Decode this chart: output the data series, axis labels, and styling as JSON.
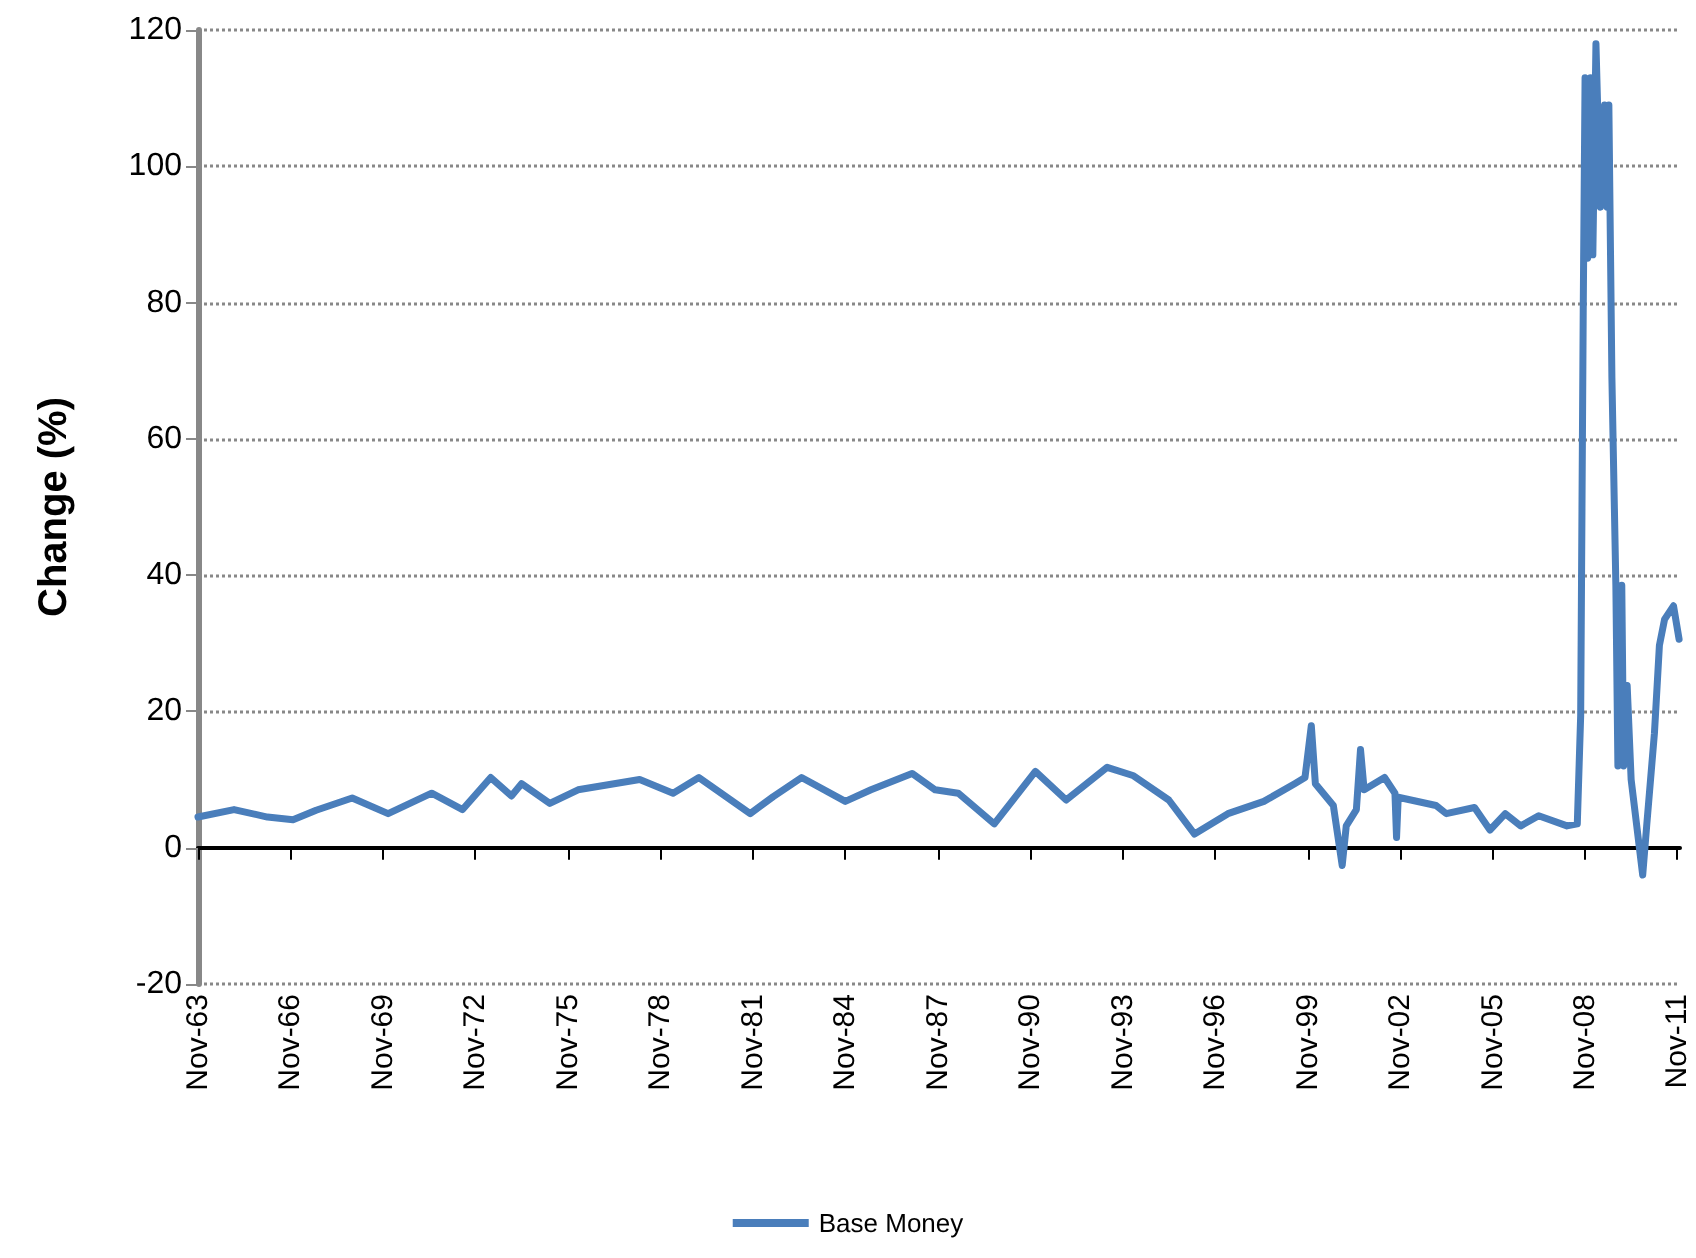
{
  "chart_data": {
    "type": "line",
    "ylabel": "Change (%)",
    "x": [
      "1963-11",
      "1965-01",
      "1966-02",
      "1966-12",
      "1967-09",
      "1968-11",
      "1970-01",
      "1971-06",
      "1972-06",
      "1973-05",
      "1974-01",
      "1974-05",
      "1975-04",
      "1976-03",
      "1978-03",
      "1979-04",
      "1980-02",
      "1981-10",
      "1982-07",
      "1983-06",
      "1984-11",
      "1985-09",
      "1987-01",
      "1987-10",
      "1988-07",
      "1989-09",
      "1991-01",
      "1992-01",
      "1993-05",
      "1994-03",
      "1995-05",
      "1996-03",
      "1997-04",
      "1998-06",
      "1999-06",
      "1999-10",
      "1999-12-15",
      "2000-02",
      "2000-09",
      "2000-12-15",
      "2001-02",
      "2001-06",
      "2001-07-20",
      "2001-09",
      "2002-05",
      "2002-09-01",
      "2002-09-20",
      "2002-10-10",
      "2004-01",
      "2004-05",
      "2005-04",
      "2005-10",
      "2006-04",
      "2006-10",
      "2007-05",
      "2008-04",
      "2008-08-01",
      "2008-09-10",
      "2008-10-10",
      "2008-11-01",
      "2008-12-01",
      "2009-01-05",
      "2009-02-01",
      "2009-03-10",
      "2009-05-01",
      "2009-06-20",
      "2009-07-20",
      "2009-08-10",
      "2009-09-15",
      "2009-11-01",
      "2009-11-25",
      "2010-01-10",
      "2010-02-01",
      "2010-03-15",
      "2010-05-01",
      "2010-09-15",
      "2010-11-01",
      "2011-02-01",
      "2011-04-01",
      "2011-06-01",
      "2011-09-15",
      "2011-11-20"
    ],
    "series": [
      {
        "name": "Base Money",
        "color": "#4a7ebb",
        "values": [
          4.5,
          5.6,
          4.5,
          4.1,
          5.5,
          7.3,
          5,
          8,
          5.6,
          10.3,
          7.6,
          9.4,
          6.5,
          8.5,
          10,
          8,
          10.3,
          5,
          7.5,
          10.3,
          6.8,
          8.5,
          10.9,
          8.5,
          8,
          3.5,
          11.2,
          7,
          11.8,
          10.6,
          7,
          2,
          5,
          6.8,
          9.4,
          10.3,
          17.9,
          9.4,
          6.2,
          -2.6,
          3.2,
          5.6,
          14.4,
          8.5,
          10.3,
          8,
          1.5,
          7.4,
          6.2,
          5,
          5.9,
          2.6,
          5,
          3.2,
          4.7,
          3.2,
          3.5,
          19.4,
          78.5,
          113,
          86.5,
          113,
          87,
          118,
          94,
          109,
          94,
          109,
          69,
          38.5,
          12,
          38.5,
          12,
          23.8,
          10,
          -4,
          3.2,
          16.8,
          29.7,
          33.5,
          35.5,
          30.6
        ]
      }
    ],
    "xlim": [
      "1963-11-01",
      "2011-12-01"
    ],
    "xticks": [
      {
        "value": "1963-11",
        "label": "Nov-63"
      },
      {
        "value": "1966-11",
        "label": "Nov-66"
      },
      {
        "value": "1969-11",
        "label": "Nov-69"
      },
      {
        "value": "1972-11",
        "label": "Nov-72"
      },
      {
        "value": "1975-11",
        "label": "Nov-75"
      },
      {
        "value": "1978-11",
        "label": "Nov-78"
      },
      {
        "value": "1981-11",
        "label": "Nov-81"
      },
      {
        "value": "1984-11",
        "label": "Nov-84"
      },
      {
        "value": "1987-11",
        "label": "Nov-87"
      },
      {
        "value": "1990-11",
        "label": "Nov-90"
      },
      {
        "value": "1993-11",
        "label": "Nov-93"
      },
      {
        "value": "1996-11",
        "label": "Nov-96"
      },
      {
        "value": "1999-11",
        "label": "Nov-99"
      },
      {
        "value": "2002-11",
        "label": "Nov-02"
      },
      {
        "value": "2005-11",
        "label": "Nov-05"
      },
      {
        "value": "2008-11",
        "label": "Nov-08"
      },
      {
        "value": "2011-11",
        "label": "Nov-11"
      }
    ],
    "ylim": [
      -20,
      120
    ],
    "yticks": [
      -20,
      0,
      20,
      40,
      60,
      80,
      100,
      120
    ],
    "grid": "y",
    "legend": "bottom",
    "marker": "none",
    "line_style": "solid"
  }
}
